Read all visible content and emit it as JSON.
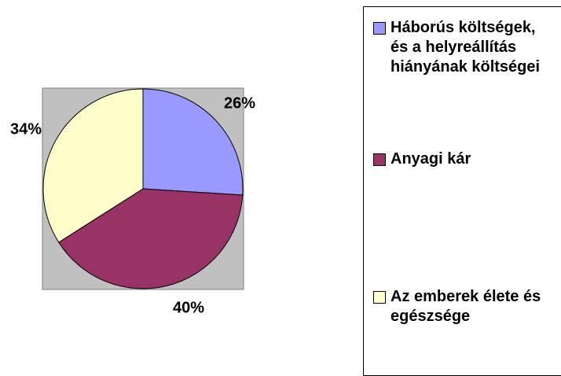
{
  "chart_data": {
    "type": "pie",
    "categories": [
      "Háborús költségek, és a helyreállítás hiányának költségei",
      "Anyagi kár",
      "Az emberek élete és egészsége"
    ],
    "values": [
      26,
      40,
      34
    ],
    "value_labels": [
      "26%",
      "40%",
      "34%"
    ],
    "colors": [
      "#9999ff",
      "#993366",
      "#ffffcc"
    ],
    "legend": "right"
  }
}
